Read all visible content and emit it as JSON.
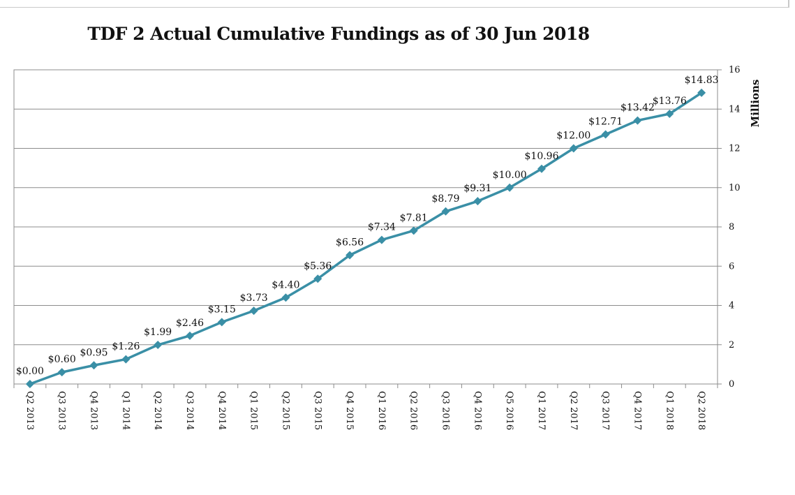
{
  "chart_data": {
    "type": "line",
    "title": "TDF 2 Actual Cumulative Fundings as of 30 Jun 2018",
    "ylabel": "Millions",
    "xlabel": "",
    "ylim": [
      0,
      16
    ],
    "yticks": [
      0,
      2,
      4,
      6,
      8,
      10,
      12,
      14,
      16
    ],
    "y_axis_side": "right",
    "grid": "horizontal",
    "line_color": "#3a8fa6",
    "categories": [
      "Q2 2013",
      "Q3 2013",
      "Q4 2013",
      "Q1 2014",
      "Q2 2014",
      "Q3 2014",
      "Q4 2014",
      "Q1 2015",
      "Q2 2015",
      "Q3 2015",
      "Q4 2015",
      "Q1 2016",
      "Q2 2016",
      "Q3 2016",
      "Q4 2016",
      "Q5 2016",
      "Q1 2017",
      "Q2 2017",
      "Q3 2017",
      "Q4 2017",
      "Q1 2018",
      "Q2 2018"
    ],
    "series": [
      {
        "values": [
          0.0,
          0.6,
          0.95,
          1.26,
          1.99,
          2.46,
          3.15,
          3.73,
          4.4,
          5.36,
          6.56,
          7.34,
          7.81,
          8.79,
          9.31,
          10.0,
          10.96,
          12.0,
          12.71,
          13.42,
          13.76,
          14.83
        ],
        "labels": [
          "$0.00",
          "$0.60",
          "$0.95",
          "$1.26",
          "$1.99",
          "$2.46",
          "$3.15",
          "$3.73",
          "$4.40",
          "$5.36",
          "$6.56",
          "$7.34",
          "$7.81",
          "$8.79",
          "$9.31",
          "$10.00",
          "$10.96",
          "$12.00",
          "$12.71",
          "$13.42",
          "$13.76",
          "$14.83"
        ]
      }
    ]
  }
}
